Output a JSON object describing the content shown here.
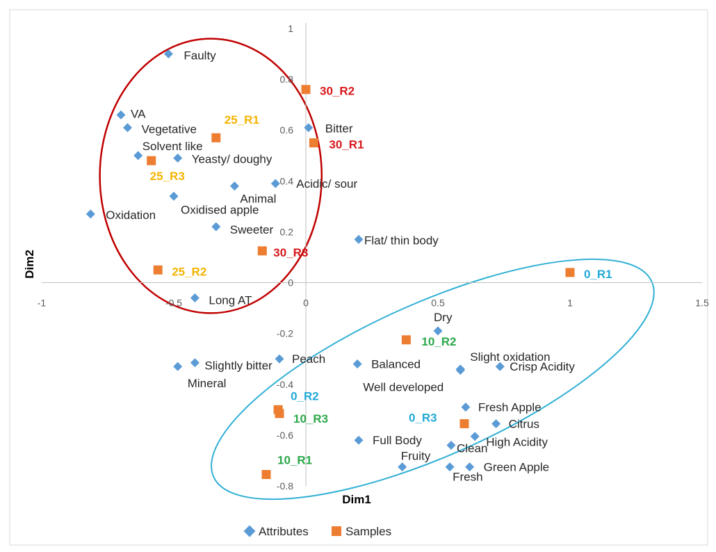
{
  "chart_data": {
    "type": "scatter",
    "xlabel": "Dim1",
    "ylabel": "Dim2",
    "xlim": [
      -1,
      1.5
    ],
    "ylim": [
      -0.8,
      1
    ],
    "x_ticks": [
      -1,
      -0.5,
      0,
      0.5,
      1,
      1.5
    ],
    "y_ticks": [
      1,
      0.8,
      0.6,
      0.4,
      0.2,
      0,
      -0.2,
      -0.4,
      -0.6,
      -0.8
    ],
    "x_tick_labels": [
      "-1",
      "-0.5",
      "0",
      "0.5",
      "1",
      "1.5"
    ],
    "y_tick_labels": [
      "1",
      "0.8",
      "0.6",
      "0.4",
      "0.2",
      "0",
      "-0.2",
      "-0.4",
      "-0.6",
      "-0.8"
    ],
    "grid": false,
    "legend_position": "bottom",
    "series": [
      {
        "name": "Attributes",
        "marker": "diamond",
        "color": "#5B9BD5",
        "points": [
          {
            "label": "Faulty",
            "x": -0.52,
            "y": 0.9
          },
          {
            "label": "VA",
            "x": -0.7,
            "y": 0.66
          },
          {
            "label": "Vegetative",
            "x": -0.675,
            "y": 0.61
          },
          {
            "label": "Solvent like",
            "x": -0.635,
            "y": 0.5
          },
          {
            "label": "Yeasty/ doughy",
            "x": -0.485,
            "y": 0.49
          },
          {
            "label": "Acidic/ sour",
            "x": -0.115,
            "y": 0.39
          },
          {
            "label": "Animal",
            "x": -0.27,
            "y": 0.38
          },
          {
            "label": "Oxidised apple",
            "x": -0.5,
            "y": 0.34
          },
          {
            "label": "Oxidation",
            "x": -0.815,
            "y": 0.27
          },
          {
            "label": "Sweeter",
            "x": -0.34,
            "y": 0.22
          },
          {
            "label": "Bitter",
            "x": 0.01,
            "y": 0.61
          },
          {
            "label": "Flat/ thin body",
            "x": 0.2,
            "y": 0.17
          },
          {
            "label": "Long AT",
            "x": -0.42,
            "y": -0.06
          },
          {
            "label": "Dry",
            "x": 0.5,
            "y": -0.19
          },
          {
            "label": "Slight oxidation",
            "x": 0.585,
            "y": -0.34
          },
          {
            "label": "Crisp Acidity",
            "x": 0.735,
            "y": -0.33
          },
          {
            "label": "Balanced",
            "x": 0.195,
            "y": -0.32
          },
          {
            "label": "Well developed",
            "x": 0.585,
            "y": -0.345
          },
          {
            "label": "Peach",
            "x": -0.1,
            "y": -0.3
          },
          {
            "label": "Slightly bitter",
            "x": -0.42,
            "y": -0.315
          },
          {
            "label": "Mineral",
            "x": -0.485,
            "y": -0.33
          },
          {
            "label": "Fresh Apple",
            "x": 0.605,
            "y": -0.49
          },
          {
            "label": "Citrus",
            "x": 0.72,
            "y": -0.555
          },
          {
            "label": "High Acidity",
            "x": 0.64,
            "y": -0.605
          },
          {
            "label": "Full Body",
            "x": 0.2,
            "y": -0.62
          },
          {
            "label": "Clean",
            "x": 0.55,
            "y": -0.64
          },
          {
            "label": "Fruity",
            "x": 0.365,
            "y": -0.725
          },
          {
            "label": "Fresh",
            "x": 0.545,
            "y": -0.725
          },
          {
            "label": "Green Apple",
            "x": 0.62,
            "y": -0.725
          }
        ]
      },
      {
        "name": "Samples",
        "marker": "square",
        "color": "#ED7D31",
        "points": [
          {
            "label": "30_R2",
            "x": 0.0,
            "y": 0.76,
            "color": "#D7191C"
          },
          {
            "label": "30_R1",
            "x": 0.03,
            "y": 0.55,
            "color": "#D7191C"
          },
          {
            "label": "30_R3",
            "x": -0.165,
            "y": 0.125,
            "color": "#D7191C"
          },
          {
            "label": "25_R1",
            "x": -0.34,
            "y": 0.57,
            "color": "#F4B400"
          },
          {
            "label": "25_R3",
            "x": -0.585,
            "y": 0.48,
            "color": "#F4B400"
          },
          {
            "label": "25_R2",
            "x": -0.56,
            "y": 0.05,
            "color": "#F4B400"
          },
          {
            "label": "0_R1",
            "x": 1.0,
            "y": 0.04,
            "color": "#22A9D6"
          },
          {
            "label": "0_R2",
            "x": -0.105,
            "y": -0.5,
            "color": "#22A9D6"
          },
          {
            "label": "0_R3",
            "x": 0.6,
            "y": -0.555,
            "color": "#22A9D6"
          },
          {
            "label": "10_R2",
            "x": 0.38,
            "y": -0.225,
            "color": "#2BA84A"
          },
          {
            "label": "10_R3",
            "x": -0.1,
            "y": -0.515,
            "color": "#2BA84A"
          },
          {
            "label": "10_R1",
            "x": -0.15,
            "y": -0.755,
            "color": "#2BA84A"
          }
        ]
      }
    ],
    "annotations": [
      {
        "shape": "ellipse",
        "color": "#C00000"
      },
      {
        "shape": "ellipse",
        "color": "#31B0D5"
      }
    ]
  }
}
